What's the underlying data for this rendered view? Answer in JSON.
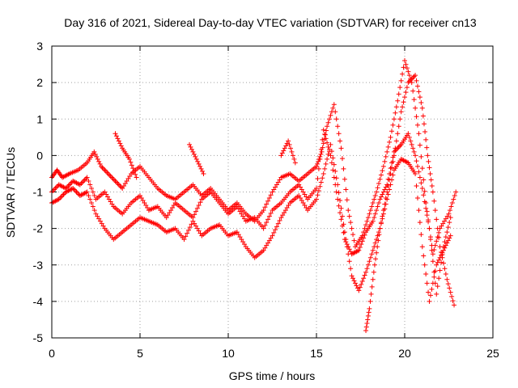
{
  "chart_data": {
    "type": "scatter",
    "title": "Day 316 of 2021, Sidereal Day-to-day VTEC variation (SDTVAR) for receiver cn13",
    "xlabel": "GPS time / hours",
    "ylabel": "SDTVAR / TECUs",
    "xlim": [
      0,
      25
    ],
    "ylim": [
      -5,
      3
    ],
    "xticks": [
      "0",
      "5",
      "10",
      "15",
      "20",
      "25"
    ],
    "yticks": [
      "-5",
      "-4",
      "-3",
      "-2",
      "-1",
      "0",
      "1",
      "2",
      "3"
    ],
    "grid": true,
    "marker": "+",
    "color": "#ff0000",
    "series": [
      {
        "x": [
          0.0,
          0.3,
          0.6,
          1.0,
          1.5,
          2.0,
          2.4,
          2.8,
          3.2,
          3.6,
          4.0,
          4.5,
          5.0,
          5.5,
          6.0,
          6.5,
          7.0,
          7.5,
          8.0,
          8.5,
          9.0,
          9.5,
          10.0,
          10.5,
          11.0,
          11.5,
          12.0,
          12.5,
          13.0,
          13.5,
          14.0,
          14.5,
          15.0,
          15.3,
          15.6,
          16.0,
          16.4,
          16.8,
          17.2,
          17.6,
          18.0,
          18.4,
          18.8,
          19.2,
          19.6,
          20.0,
          20.4,
          20.8,
          21.2,
          21.6,
          22.0,
          22.5,
          22.9
        ],
        "y": [
          -0.6,
          -0.4,
          -0.6,
          -0.5,
          -0.4,
          -0.2,
          0.1,
          -0.3,
          -0.5,
          -0.7,
          -0.9,
          -0.5,
          -0.3,
          -0.6,
          -0.9,
          -1.1,
          -1.2,
          -1.0,
          -0.8,
          -1.1,
          -0.9,
          -1.2,
          -1.5,
          -1.3,
          -1.6,
          -1.8,
          -1.5,
          -1.0,
          -0.6,
          -0.5,
          -0.7,
          -0.5,
          -0.3,
          0.1,
          0.8,
          1.4,
          0.2,
          -1.5,
          -2.5,
          -2.2,
          -1.6,
          -1.0,
          -0.3,
          0.5,
          1.5,
          2.6,
          2.0,
          0.6,
          -1.3,
          -2.7,
          -2.0,
          -1.6,
          -1.0
        ]
      },
      {
        "x": [
          0.0,
          0.4,
          0.8,
          1.2,
          1.6,
          2.0,
          2.5,
          3.0,
          3.5,
          4.0,
          4.5,
          5.0,
          5.5,
          6.0,
          6.5,
          7.0,
          7.5,
          8.0,
          8.5,
          9.0,
          9.5,
          10.0,
          10.5,
          11.0,
          11.5,
          12.0,
          12.5,
          13.0,
          13.5,
          14.0,
          14.5,
          15.0,
          15.4,
          15.8,
          16.2,
          16.6,
          17.0,
          17.4,
          17.8,
          18.2,
          18.6,
          19.0,
          19.4,
          19.8,
          20.2,
          20.6,
          21.0,
          21.4,
          21.8,
          22.2,
          22.6
        ],
        "y": [
          -1.0,
          -0.8,
          -0.9,
          -0.7,
          -0.8,
          -0.6,
          -1.2,
          -1.0,
          -1.4,
          -1.6,
          -1.3,
          -1.1,
          -1.5,
          -1.4,
          -1.7,
          -1.3,
          -1.5,
          -1.7,
          -1.2,
          -1.0,
          -1.3,
          -1.6,
          -1.4,
          -1.8,
          -1.7,
          -2.0,
          -1.5,
          -1.3,
          -1.0,
          -0.8,
          -1.2,
          -0.9,
          0.7,
          0.0,
          -1.2,
          -2.3,
          -2.7,
          -2.6,
          -2.1,
          -1.8,
          -1.2,
          -0.8,
          0.1,
          0.3,
          0.6,
          0.0,
          -0.9,
          -2.0,
          -3.8,
          -2.5,
          -1.7
        ]
      },
      {
        "x": [
          0.0,
          0.4,
          0.8,
          1.2,
          1.6,
          2.0,
          2.5,
          3.0,
          3.5,
          4.0,
          4.5,
          5.0,
          5.5,
          6.0,
          6.5,
          7.0,
          7.5,
          8.0,
          8.5,
          9.0,
          9.5,
          10.0,
          10.5,
          11.0,
          11.5,
          12.0,
          12.5,
          13.0,
          13.5,
          14.0,
          14.5,
          15.0,
          15.4,
          15.8,
          16.2,
          16.6,
          17.0,
          17.4,
          17.8,
          18.2,
          18.6,
          19.0,
          19.4,
          19.8,
          20.2,
          20.6,
          21.0,
          21.4,
          21.8,
          22.2,
          22.6
        ],
        "y": [
          -1.3,
          -1.2,
          -1.0,
          -0.9,
          -1.1,
          -1.0,
          -1.6,
          -2.0,
          -2.3,
          -2.1,
          -1.9,
          -1.7,
          -1.8,
          -1.9,
          -2.1,
          -2.0,
          -2.3,
          -1.8,
          -2.2,
          -2.0,
          -1.9,
          -2.2,
          -2.1,
          -2.5,
          -2.8,
          -2.6,
          -2.2,
          -1.7,
          -1.3,
          -1.1,
          -1.5,
          -1.2,
          -0.5,
          0.3,
          -0.8,
          -2.1,
          -3.3,
          -3.7,
          -3.2,
          -2.6,
          -2.0,
          -1.2,
          -0.4,
          -0.1,
          -0.2,
          -0.5,
          -2.5,
          -4.0,
          -3.0,
          -2.6,
          -2.2
        ]
      },
      {
        "x": [
          3.6,
          4.0,
          4.4,
          4.8,
          7.8,
          8.2,
          8.6,
          13.0,
          13.4,
          13.8,
          17.8,
          18.0,
          18.3,
          18.6,
          19.0,
          19.4,
          19.8,
          20.2,
          20.6,
          21.0,
          21.3,
          21.6,
          22.0,
          22.4,
          22.8
        ],
        "y": [
          0.6,
          0.2,
          -0.1,
          -0.6,
          0.3,
          -0.1,
          -0.5,
          0.0,
          0.4,
          -0.2,
          -4.8,
          -4.2,
          -3.0,
          -2.0,
          -1.0,
          0.0,
          1.2,
          2.0,
          2.2,
          1.3,
          0.0,
          -1.0,
          -2.5,
          -3.4,
          -4.1
        ]
      }
    ]
  }
}
